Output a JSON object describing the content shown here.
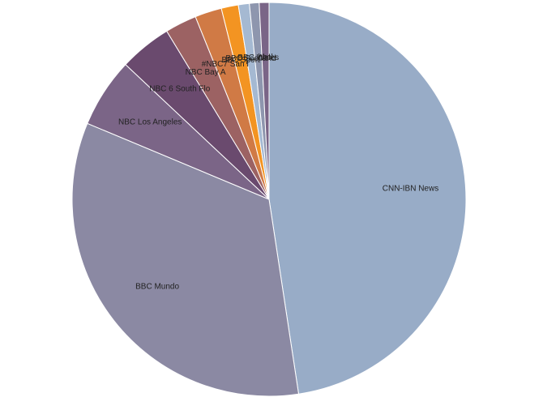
{
  "chart_data": {
    "type": "pie",
    "title": "",
    "slices": [
      {
        "label": "CNN-IBN News",
        "value": 47.6,
        "color": "#98acc7"
      },
      {
        "label": "BBC Mundo",
        "value": 33.7,
        "color": "#8b89a3"
      },
      {
        "label": "NBC Los Angeles",
        "value": 5.7,
        "color": "#7b6587"
      },
      {
        "label": "NBC 6 South Flo",
        "value": 4.3,
        "color": "#6a4a6e"
      },
      {
        "label": "NBC Bay A",
        "value": 2.6,
        "color": "#9c6263"
      },
      {
        "label": "#NBC7 San I",
        "value": 2.2,
        "color": "#d07a45"
      },
      {
        "label": "BBC Sport",
        "value": 1.4,
        "color": "#f39422"
      },
      {
        "label": "BBC Scotland",
        "value": 0.9,
        "color": "#a5b9d2"
      },
      {
        "label": "BBC Wales",
        "value": 0.8,
        "color": "#8e96ae"
      },
      {
        "label": "bbcl",
        "value": 0.8,
        "color": "#7a6587"
      }
    ]
  }
}
